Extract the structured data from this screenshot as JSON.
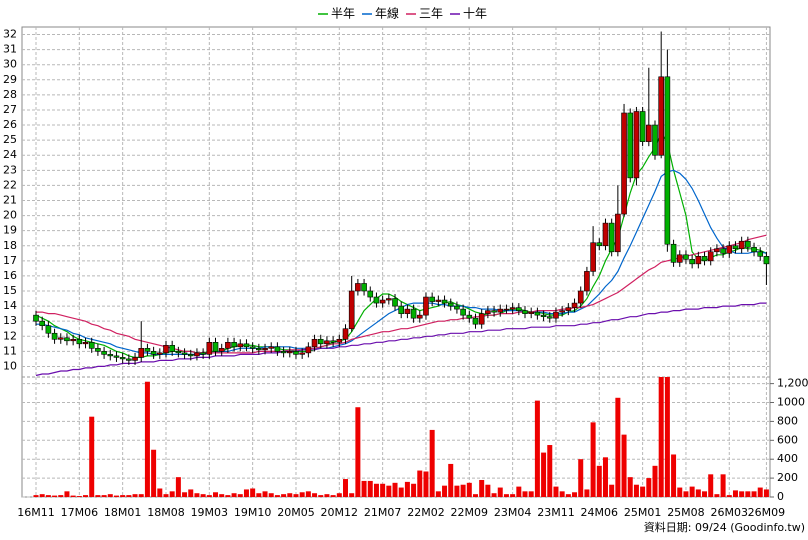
{
  "chart_data": [
    {
      "type": "candlestick",
      "open": [
        13.4,
        13.0,
        12.7,
        12.2,
        11.8,
        11.9,
        11.7,
        11.8,
        11.5,
        11.6,
        11.2,
        11.0,
        10.8,
        10.7,
        10.6,
        10.5,
        10.4,
        10.6,
        11.2,
        11.0,
        10.8,
        10.9,
        11.4,
        11.0,
        10.9,
        10.8,
        10.7,
        10.9,
        10.8,
        11.6,
        11.0,
        11.2,
        11.6,
        11.3,
        11.5,
        11.3,
        11.2,
        11.1,
        11.2,
        11.3,
        11.0,
        10.9,
        11.0,
        10.8,
        10.9,
        11.3,
        11.8,
        11.5,
        11.7,
        11.6,
        11.8,
        12.5,
        15.0,
        15.5,
        15.0,
        14.6,
        14.2,
        14.4,
        14.5,
        14.0,
        13.5,
        13.8,
        13.2,
        13.4,
        14.6,
        14.3,
        14.4,
        14.2,
        14.0,
        13.8,
        13.4,
        13.2,
        12.8,
        13.5,
        13.7,
        13.6,
        13.8,
        13.8,
        13.9,
        13.7,
        13.5,
        13.6,
        13.4,
        13.3,
        13.2,
        13.6,
        13.7,
        13.9,
        14.2,
        15.0,
        16.3,
        18.2,
        18.0,
        19.5,
        17.6,
        20.1,
        26.8,
        22.5,
        26.9,
        24.9,
        26.0,
        24.0,
        29.2,
        18.1,
        16.9,
        17.4,
        17.1,
        16.8,
        17.3,
        17.0,
        17.6,
        17.8,
        17.5,
        18.0,
        17.8,
        18.3,
        17.9,
        17.6,
        17.3
      ],
      "high": [
        13.7,
        13.3,
        13.0,
        12.5,
        12.2,
        12.2,
        12.1,
        12.1,
        11.9,
        11.9,
        11.5,
        11.3,
        11.1,
        11.0,
        10.9,
        10.8,
        10.9,
        13.0,
        11.5,
        11.3,
        11.2,
        11.7,
        11.7,
        11.3,
        11.2,
        11.1,
        11.2,
        11.2,
        11.9,
        11.9,
        11.5,
        11.9,
        11.9,
        11.8,
        11.8,
        11.6,
        11.5,
        11.5,
        11.6,
        11.6,
        11.3,
        11.3,
        11.3,
        11.2,
        11.6,
        12.1,
        12.1,
        12.0,
        12.0,
        12.1,
        12.8,
        16.0,
        15.8,
        15.8,
        15.3,
        14.9,
        14.7,
        14.8,
        14.8,
        14.3,
        14.1,
        14.1,
        13.7,
        14.9,
        14.9,
        14.7,
        14.7,
        14.5,
        14.3,
        14.1,
        13.7,
        13.5,
        13.8,
        14.0,
        14.0,
        14.1,
        14.1,
        14.2,
        14.2,
        14.0,
        13.9,
        13.9,
        13.7,
        13.6,
        13.9,
        14.0,
        14.2,
        14.5,
        15.3,
        16.6,
        19.3,
        18.5,
        19.8,
        19.8,
        22.0,
        27.4,
        27.1,
        27.2,
        27.2,
        29.8,
        26.3,
        32.2,
        31.0,
        18.4,
        17.7,
        17.7,
        17.4,
        17.6,
        17.6,
        17.9,
        18.1,
        18.1,
        18.3,
        18.3,
        18.6,
        18.6,
        18.2,
        17.9,
        17.6
      ],
      "low": [
        12.7,
        12.4,
        11.9,
        11.5,
        11.5,
        11.4,
        11.4,
        11.2,
        11.2,
        10.9,
        10.7,
        10.5,
        10.4,
        10.3,
        10.2,
        10.1,
        10.1,
        10.3,
        10.7,
        10.5,
        10.5,
        10.6,
        10.7,
        10.6,
        10.5,
        10.4,
        10.4,
        10.5,
        10.5,
        10.7,
        10.7,
        10.9,
        11.0,
        11.0,
        11.0,
        10.9,
        10.8,
        10.8,
        10.9,
        10.7,
        10.6,
        10.6,
        10.5,
        10.5,
        10.6,
        11.0,
        11.2,
        11.2,
        11.3,
        11.3,
        11.5,
        12.3,
        14.7,
        14.7,
        14.3,
        13.9,
        13.9,
        14.1,
        13.7,
        13.2,
        13.2,
        12.9,
        12.9,
        13.1,
        14.0,
        14.0,
        13.9,
        13.7,
        13.5,
        13.1,
        12.9,
        12.5,
        12.5,
        13.2,
        13.3,
        13.3,
        13.5,
        13.5,
        13.4,
        13.2,
        13.2,
        13.1,
        13.0,
        12.9,
        12.9,
        13.3,
        13.4,
        13.6,
        13.9,
        14.7,
        16.0,
        17.7,
        17.7,
        17.3,
        17.3,
        19.9,
        22.2,
        22.0,
        24.6,
        24.6,
        23.7,
        23.8,
        17.6,
        16.6,
        16.6,
        16.8,
        16.5,
        16.5,
        16.7,
        16.7,
        17.3,
        17.2,
        17.2,
        17.5,
        17.5,
        17.6,
        17.3,
        17.0,
        15.4
      ],
      "close": [
        13.0,
        12.7,
        12.2,
        11.8,
        11.9,
        11.7,
        11.8,
        11.5,
        11.6,
        11.2,
        11.0,
        10.8,
        10.7,
        10.6,
        10.5,
        10.4,
        10.6,
        11.2,
        11.0,
        10.8,
        10.9,
        11.4,
        11.0,
        10.9,
        10.8,
        10.7,
        10.9,
        10.8,
        11.6,
        11.0,
        11.2,
        11.6,
        11.3,
        11.5,
        11.3,
        11.2,
        11.1,
        11.2,
        11.3,
        11.0,
        10.9,
        11.0,
        10.8,
        10.9,
        11.3,
        11.8,
        11.5,
        11.7,
        11.6,
        11.8,
        12.5,
        15.0,
        15.5,
        15.0,
        14.6,
        14.2,
        14.4,
        14.5,
        14.0,
        13.5,
        13.8,
        13.2,
        13.4,
        14.6,
        14.3,
        14.4,
        14.2,
        14.0,
        13.8,
        13.4,
        13.2,
        12.8,
        13.5,
        13.7,
        13.6,
        13.8,
        13.8,
        13.9,
        13.7,
        13.5,
        13.6,
        13.4,
        13.3,
        13.2,
        13.6,
        13.7,
        13.9,
        14.2,
        15.0,
        16.3,
        18.2,
        18.0,
        19.5,
        17.6,
        20.1,
        26.8,
        22.5,
        26.9,
        24.9,
        26.0,
        24.0,
        29.2,
        18.1,
        16.9,
        17.4,
        17.1,
        16.8,
        17.3,
        17.0,
        17.6,
        17.8,
        17.5,
        18.0,
        17.8,
        18.3,
        17.9,
        17.6,
        17.3,
        16.8
      ],
      "up_color": "#c00000",
      "down_color": "#00b000",
      "series": [
        {
          "name": "半年",
          "color": "#00b000",
          "values": [
            13.4,
            13.2,
            13.0,
            12.7,
            12.5,
            12.3,
            12.0,
            11.8,
            11.7,
            11.6,
            11.5,
            11.4,
            11.2,
            11.0,
            10.9,
            10.7,
            10.6,
            10.6,
            10.7,
            10.7,
            10.8,
            10.9,
            11.0,
            11.0,
            11.0,
            11.0,
            10.9,
            10.9,
            11.0,
            11.0,
            11.0,
            11.2,
            11.3,
            11.4,
            11.4,
            11.4,
            11.3,
            11.3,
            11.3,
            11.2,
            11.1,
            11.1,
            11.0,
            11.0,
            11.0,
            11.1,
            11.3,
            11.4,
            11.6,
            11.7,
            11.8,
            12.3,
            13.0,
            13.7,
            14.1,
            14.5,
            14.8,
            14.8,
            14.6,
            14.3,
            14.1,
            13.9,
            13.7,
            13.8,
            13.9,
            14.0,
            14.2,
            14.3,
            14.1,
            14.0,
            13.8,
            13.6,
            13.5,
            13.4,
            13.4,
            13.5,
            13.7,
            13.8,
            13.8,
            13.7,
            13.6,
            13.6,
            13.5,
            13.4,
            13.4,
            13.4,
            13.6,
            13.7,
            14.0,
            14.5,
            15.3,
            16.0,
            17.0,
            17.8,
            18.5,
            20.0,
            21.5,
            22.7,
            23.2,
            23.9,
            24.5,
            25.5,
            24.8,
            23.0,
            21.5,
            20.0,
            17.6,
            17.1,
            17.0,
            17.2,
            17.4,
            17.4,
            17.6,
            17.7,
            17.9,
            17.8,
            17.8,
            17.7,
            17.5
          ]
        },
        {
          "name": "年線",
          "color": "#0066cc",
          "values": [
            12.8,
            12.8,
            12.7,
            12.6,
            12.5,
            12.4,
            12.2,
            12.1,
            11.9,
            11.8,
            11.7,
            11.6,
            11.5,
            11.3,
            11.2,
            11.1,
            11.0,
            10.9,
            10.9,
            10.8,
            10.8,
            10.8,
            10.8,
            10.8,
            10.8,
            10.8,
            10.8,
            10.8,
            10.9,
            10.9,
            11.0,
            11.0,
            11.1,
            11.2,
            11.2,
            11.2,
            11.2,
            11.3,
            11.3,
            11.3,
            11.3,
            11.3,
            11.2,
            11.2,
            11.2,
            11.2,
            11.2,
            11.2,
            11.3,
            11.4,
            11.5,
            11.7,
            12.0,
            12.3,
            12.6,
            12.9,
            13.2,
            13.5,
            13.7,
            13.9,
            14.1,
            14.2,
            14.2,
            14.2,
            14.2,
            14.1,
            14.1,
            14.0,
            14.0,
            14.0,
            13.9,
            13.9,
            13.8,
            13.8,
            13.8,
            13.7,
            13.7,
            13.7,
            13.7,
            13.6,
            13.6,
            13.6,
            13.6,
            13.5,
            13.5,
            13.5,
            13.6,
            13.6,
            13.8,
            14.0,
            14.4,
            14.8,
            15.3,
            15.7,
            16.3,
            17.2,
            18.0,
            18.9,
            19.8,
            20.7,
            21.6,
            22.6,
            22.9,
            23.0,
            22.8,
            22.4,
            21.8,
            21.0,
            20.1,
            19.2,
            18.5,
            17.9,
            17.7,
            17.5,
            17.5,
            17.5,
            17.6,
            17.6,
            17.5
          ]
        },
        {
          "name": "三年",
          "color": "#d02060",
          "values": [
            13.6,
            13.6,
            13.5,
            13.5,
            13.4,
            13.3,
            13.2,
            13.1,
            13.0,
            12.8,
            12.7,
            12.5,
            12.4,
            12.2,
            12.1,
            12.0,
            11.8,
            11.7,
            11.6,
            11.5,
            11.4,
            11.3,
            11.2,
            11.1,
            11.0,
            11.0,
            10.9,
            10.9,
            10.9,
            10.9,
            10.9,
            10.9,
            10.9,
            10.9,
            10.9,
            10.9,
            11.0,
            11.0,
            11.0,
            11.0,
            11.0,
            11.1,
            11.1,
            11.1,
            11.2,
            11.2,
            11.3,
            11.4,
            11.5,
            11.5,
            11.6,
            11.8,
            11.9,
            12.0,
            12.1,
            12.2,
            12.3,
            12.3,
            12.4,
            12.5,
            12.5,
            12.6,
            12.7,
            12.8,
            12.9,
            13.0,
            13.0,
            13.1,
            13.1,
            13.2,
            13.2,
            13.3,
            13.3,
            13.4,
            13.4,
            13.5,
            13.5,
            13.5,
            13.6,
            13.6,
            13.6,
            13.7,
            13.7,
            13.7,
            13.7,
            13.8,
            13.8,
            13.9,
            13.9,
            14.0,
            14.1,
            14.3,
            14.5,
            14.7,
            14.9,
            15.2,
            15.5,
            15.8,
            16.1,
            16.4,
            16.6,
            16.9,
            17.0,
            17.1,
            17.2,
            17.3,
            17.4,
            17.5,
            17.6,
            17.7,
            17.8,
            17.9,
            18.0,
            18.1,
            18.2,
            18.4,
            18.5,
            18.6,
            18.7
          ]
        },
        {
          "name": "十年",
          "color": "#6a0dad",
          "values": [
            9.4,
            9.5,
            9.5,
            9.6,
            9.7,
            9.7,
            9.8,
            9.8,
            9.9,
            9.9,
            10.0,
            10.0,
            10.1,
            10.1,
            10.2,
            10.2,
            10.2,
            10.3,
            10.3,
            10.3,
            10.4,
            10.4,
            10.4,
            10.5,
            10.5,
            10.5,
            10.6,
            10.6,
            10.6,
            10.7,
            10.7,
            10.7,
            10.7,
            10.8,
            10.8,
            10.8,
            10.8,
            10.9,
            10.9,
            10.9,
            11.0,
            11.0,
            11.0,
            11.1,
            11.1,
            11.1,
            11.2,
            11.2,
            11.2,
            11.3,
            11.3,
            11.4,
            11.4,
            11.5,
            11.5,
            11.6,
            11.6,
            11.7,
            11.7,
            11.8,
            11.8,
            11.9,
            11.9,
            12.0,
            12.0,
            12.1,
            12.1,
            12.2,
            12.2,
            12.2,
            12.3,
            12.3,
            12.3,
            12.4,
            12.4,
            12.4,
            12.5,
            12.5,
            12.5,
            12.5,
            12.6,
            12.6,
            12.6,
            12.6,
            12.7,
            12.7,
            12.7,
            12.7,
            12.8,
            12.8,
            12.9,
            12.9,
            13.0,
            13.1,
            13.1,
            13.2,
            13.3,
            13.3,
            13.4,
            13.5,
            13.5,
            13.6,
            13.6,
            13.7,
            13.7,
            13.8,
            13.8,
            13.8,
            13.9,
            13.9,
            13.9,
            14.0,
            14.0,
            14.0,
            14.1,
            14.1,
            14.1,
            14.2,
            14.2
          ]
        }
      ],
      "ylim": [
        9.3,
        32.5
      ],
      "yticks": [
        10,
        11,
        12,
        13,
        14,
        15,
        16,
        17,
        18,
        19,
        20,
        21,
        22,
        23,
        24,
        25,
        26,
        27,
        28,
        29,
        30,
        31,
        32
      ],
      "grid": true
    },
    {
      "type": "bar",
      "categories": [
        "16M11",
        null,
        null,
        null,
        null,
        null,
        null,
        "17M06",
        null,
        null,
        null,
        null,
        null,
        null,
        "18M01",
        null,
        null,
        null,
        null,
        null,
        null,
        "18M08",
        null,
        null,
        null,
        null,
        null,
        null,
        "19M03",
        null,
        null,
        null,
        null,
        null,
        null,
        "19M10",
        null,
        null,
        null,
        null,
        null,
        null,
        "20M05",
        null,
        null,
        null,
        null,
        null,
        null,
        "20M12",
        null,
        null,
        null,
        null,
        null,
        null,
        "21M07",
        null,
        null,
        null,
        null,
        null,
        null,
        "22M02",
        null,
        null,
        null,
        null,
        null,
        null,
        "22M09",
        null,
        null,
        null,
        null,
        null,
        null,
        "23M04",
        null,
        null,
        null,
        null,
        null,
        null,
        "23M11",
        null,
        null,
        null,
        null,
        null,
        null,
        "24M06",
        null,
        null,
        null,
        null,
        null,
        null,
        "25M01",
        null,
        null,
        null,
        null,
        null,
        null,
        "25M08",
        null,
        null,
        null,
        null,
        null,
        null,
        "26M03",
        null,
        null,
        null,
        null,
        null,
        "26M09"
      ],
      "values": [
        20,
        30,
        20,
        15,
        20,
        60,
        15,
        10,
        20,
        850,
        20,
        20,
        30,
        15,
        20,
        20,
        30,
        30,
        1220,
        500,
        90,
        30,
        60,
        210,
        50,
        80,
        40,
        30,
        20,
        50,
        30,
        20,
        40,
        30,
        80,
        90,
        40,
        60,
        40,
        20,
        30,
        40,
        30,
        50,
        60,
        40,
        20,
        30,
        20,
        40,
        190,
        40,
        950,
        170,
        170,
        140,
        140,
        120,
        150,
        100,
        160,
        140,
        280,
        270,
        710,
        60,
        120,
        350,
        120,
        130,
        150,
        30,
        180,
        130,
        40,
        100,
        30,
        30,
        110,
        60,
        60,
        1020,
        470,
        550,
        110,
        60,
        30,
        50,
        400,
        80,
        790,
        330,
        420,
        130,
        1050,
        660,
        210,
        130,
        110,
        200,
        330,
        1270,
        1270,
        450,
        100,
        60,
        110,
        80,
        60,
        240,
        30,
        240,
        20,
        70,
        60,
        60,
        60,
        100,
        80
      ],
      "color": "#ee0000",
      "ylim": [
        0,
        1270
      ],
      "yticks": [
        0,
        200,
        400,
        600,
        800,
        1000,
        {
          "value": 1200,
          "label": "1,200"
        }
      ],
      "grid": true,
      "source": "資料日期: 09/24 (Goodinfo.tw)"
    }
  ]
}
